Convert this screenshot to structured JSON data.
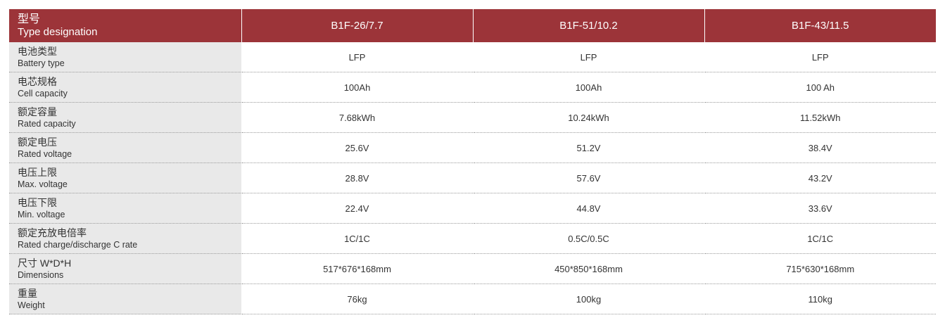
{
  "header": {
    "label_zh": "型号",
    "label_en": "Type designation",
    "models": [
      "B1F-26/7.7",
      "B1F-51/10.2",
      "B1F-43/11.5"
    ]
  },
  "rows": [
    {
      "zh": "电池类型",
      "en": "Battery type",
      "values": [
        "LFP",
        "LFP",
        "LFP"
      ]
    },
    {
      "zh": "电芯规格",
      "en": "Cell capacity",
      "values": [
        "100Ah",
        "100Ah",
        "100 Ah"
      ]
    },
    {
      "zh": "额定容量",
      "en": "Rated capacity",
      "values": [
        "7.68kWh",
        "10.24kWh",
        "11.52kWh"
      ]
    },
    {
      "zh": "额定电压",
      "en": "Rated voltage",
      "values": [
        "25.6V",
        "51.2V",
        "38.4V"
      ]
    },
    {
      "zh": "电压上限",
      "en": "Max. voltage",
      "values": [
        "28.8V",
        "57.6V",
        "43.2V"
      ]
    },
    {
      "zh": "电压下限",
      "en": "Min. voltage",
      "values": [
        "22.4V",
        "44.8V",
        "33.6V"
      ]
    },
    {
      "zh": "额定充放电倍率",
      "en": "Rated charge/discharge C rate",
      "values": [
        "1C/1C",
        "0.5C/0.5C",
        "1C/1C"
      ]
    },
    {
      "zh": "尺寸 W*D*H",
      "en": "Dimensions",
      "values": [
        "517*676*168mm",
        "450*850*168mm",
        "715*630*168mm"
      ]
    },
    {
      "zh": "重量",
      "en": "Weight",
      "values": [
        "76kg",
        "100kg",
        "110kg"
      ]
    }
  ],
  "colors": {
    "header_bg": "#9c3439",
    "label_bg": "#e9e9e9",
    "text": "#333333"
  }
}
